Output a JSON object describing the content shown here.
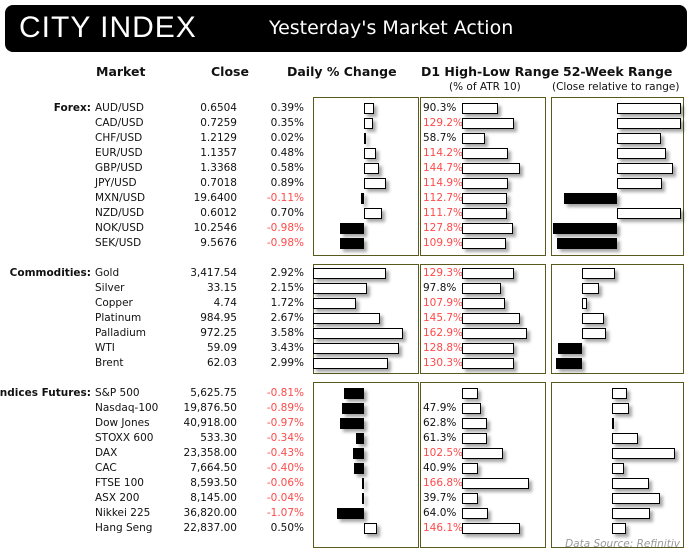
{
  "header": {
    "logo": "CITY INDEX",
    "title": "Yesterday's Market Action"
  },
  "columns": {
    "market": "Market",
    "close": "Close",
    "daily": "Daily % Change",
    "d1": "D1 High-Low Range",
    "d1_sub": "(% of ATR 10)",
    "wk52": "52-Week Range",
    "wk52_sub": "(Close relative to range)"
  },
  "colors": {
    "negative": "#ff4a4a",
    "panel_border": "#5a5a1e"
  },
  "sections": [
    {
      "label": "Forex:",
      "rows": [
        {
          "market": "AUD/USD",
          "close": "0.6504",
          "change": 0.39,
          "change_label": "0.39%",
          "d1": 90.3,
          "d1_label": "90.3%",
          "wk52": 1.0
        },
        {
          "market": "CAD/USD",
          "close": "0.7259",
          "change": 0.35,
          "change_label": "0.35%",
          "d1": 129.2,
          "d1_label": "129.2%",
          "wk52": 1.0
        },
        {
          "market": "CHF/USD",
          "close": "1.2129",
          "change": 0.02,
          "change_label": "0.02%",
          "d1": 58.7,
          "d1_label": "58.7%",
          "wk52": 0.68
        },
        {
          "market": "EUR/USD",
          "close": "1.1357",
          "change": 0.48,
          "change_label": "0.48%",
          "d1": 114.2,
          "d1_label": "114.2%",
          "wk52": 0.77
        },
        {
          "market": "GBP/USD",
          "close": "1.3368",
          "change": 0.58,
          "change_label": "0.58%",
          "d1": 144.7,
          "d1_label": "144.7%",
          "wk52": 0.87
        },
        {
          "market": "JPY/USD",
          "close": "0.7018",
          "change": 0.89,
          "change_label": "0.89%",
          "d1": 114.9,
          "d1_label": "114.9%",
          "wk52": 0.7
        },
        {
          "market": "MXN/USD",
          "close": "19.6400",
          "change": -0.11,
          "change_label": "-0.11%",
          "d1": 112.7,
          "d1_label": "112.7%",
          "wk52": -0.83
        },
        {
          "market": "NZD/USD",
          "close": "0.6012",
          "change": 0.7,
          "change_label": "0.70%",
          "d1": 111.7,
          "d1_label": "111.7%",
          "wk52": 1.0
        },
        {
          "market": "NOK/USD",
          "close": "10.2546",
          "change": -0.98,
          "change_label": "-0.98%",
          "d1": 127.8,
          "d1_label": "127.8%",
          "wk52": -1.0
        },
        {
          "market": "SEK/USD",
          "close": "9.5676",
          "change": -0.98,
          "change_label": "-0.98%",
          "d1": 109.9,
          "d1_label": "109.9%",
          "wk52": -0.94
        }
      ]
    },
    {
      "label": "Commodities:",
      "rows": [
        {
          "market": "Gold",
          "close": "3,417.54",
          "change": 2.92,
          "change_label": "2.92%",
          "d1": 129.3,
          "d1_label": "129.3%",
          "wk52": 0.51
        },
        {
          "market": "Silver",
          "close": "33.15",
          "change": 2.15,
          "change_label": "2.15%",
          "d1": 97.8,
          "d1_label": "97.8%",
          "wk52": 0.27
        },
        {
          "market": "Copper",
          "close": "4.74",
          "change": 1.72,
          "change_label": "1.72%",
          "d1": 107.9,
          "d1_label": "107.9%",
          "wk52": 0.08
        },
        {
          "market": "Platinum",
          "close": "984.95",
          "change": 2.67,
          "change_label": "2.67%",
          "d1": 145.7,
          "d1_label": "145.7%",
          "wk52": 0.34
        },
        {
          "market": "Palladium",
          "close": "972.25",
          "change": 3.58,
          "change_label": "3.58%",
          "d1": 162.9,
          "d1_label": "162.9%",
          "wk52": 0.38
        },
        {
          "market": "WTI",
          "close": "59.09",
          "change": 3.43,
          "change_label": "3.43%",
          "d1": 128.8,
          "d1_label": "128.8%",
          "wk52": -0.38
        },
        {
          "market": "Brent",
          "close": "62.03",
          "change": 2.99,
          "change_label": "2.99%",
          "d1": 130.3,
          "d1_label": "130.3%",
          "wk52": -0.41
        }
      ]
    },
    {
      "label": "Indices Futures:",
      "rows": [
        {
          "market": "S&P 500",
          "close": "5,625.75",
          "change": -0.81,
          "change_label": "-0.81%",
          "d1": 41,
          "d1_label": "",
          "wk52": 0.23
        },
        {
          "market": "Nasdaq-100",
          "close": "19,876.50",
          "change": -0.89,
          "change_label": "-0.89%",
          "d1": 47.9,
          "d1_label": "47.9%",
          "wk52": 0.27
        },
        {
          "market": "Dow Jones",
          "close": "40,918.00",
          "change": -0.97,
          "change_label": "-0.97%",
          "d1": 62.8,
          "d1_label": "62.8%",
          "wk52": 0.03
        },
        {
          "market": "STOXX 600",
          "close": "533.30",
          "change": -0.34,
          "change_label": "-0.34%",
          "d1": 61.3,
          "d1_label": "61.3%",
          "wk52": 0.4
        },
        {
          "market": "DAX",
          "close": "23,358.00",
          "change": -0.43,
          "change_label": "-0.43%",
          "d1": 102.5,
          "d1_label": "102.5%",
          "wk52": 0.98
        },
        {
          "market": "CAC",
          "close": "7,664.50",
          "change": -0.4,
          "change_label": "-0.40%",
          "d1": 40.9,
          "d1_label": "40.9%",
          "wk52": 0.18
        },
        {
          "market": "FTSE 100",
          "close": "8,593.50",
          "change": -0.06,
          "change_label": "-0.06%",
          "d1": 166.8,
          "d1_label": "166.8%",
          "wk52": 0.58
        },
        {
          "market": "ASX 200",
          "close": "8,145.00",
          "change": -0.04,
          "change_label": "-0.04%",
          "d1": 39.7,
          "d1_label": "39.7%",
          "wk52": 0.75
        },
        {
          "market": "Nikkei 225",
          "close": "36,820.00",
          "change": -1.07,
          "change_label": "-1.07%",
          "d1": 64.0,
          "d1_label": "64.0%",
          "wk52": 0.6
        },
        {
          "market": "Hang Seng",
          "close": "22,837.00",
          "change": 0.5,
          "change_label": "0.50%",
          "d1": 146.1,
          "d1_label": "146.1%",
          "wk52": 0.22
        }
      ]
    }
  ],
  "source": "Data Source: Refinitiv"
}
